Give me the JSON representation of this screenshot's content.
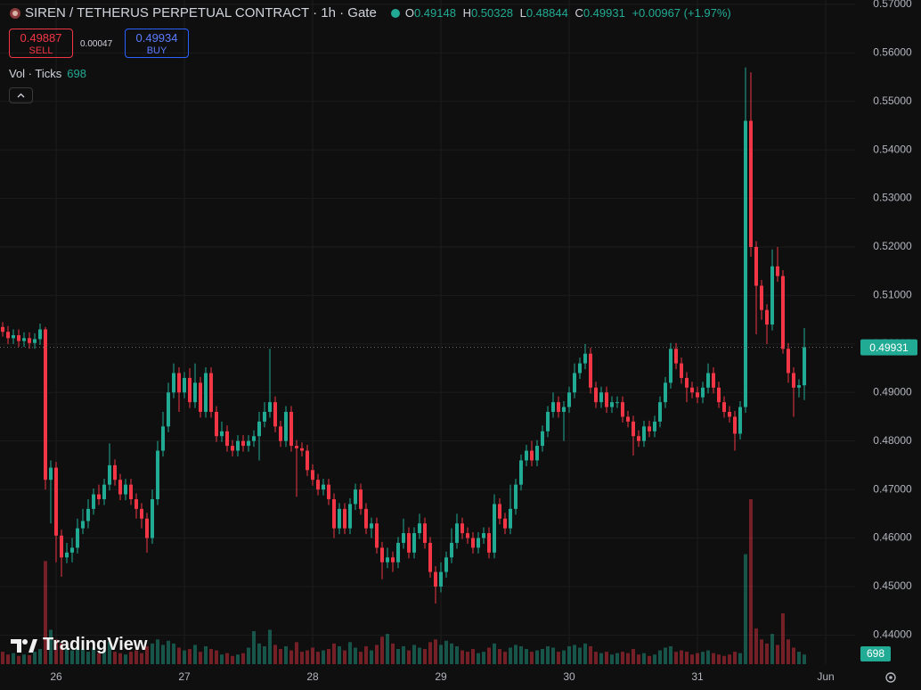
{
  "chart_data": {
    "type": "candlestick",
    "title": "SIREN / TETHERUS PERPETUAL CONTRACT · 1h · Gate",
    "ohlc_labels": [
      "O",
      "H",
      "L",
      "C"
    ],
    "change_label": "+0.00967 (+1.97%)",
    "sell": {
      "price": 0.49887,
      "label": "SELL"
    },
    "spread": 0.00047,
    "buy": {
      "price": 0.49934,
      "label": "BUY"
    },
    "volume_title": "Vol · Ticks",
    "brand": "TradingView",
    "up_color": "#22ab94",
    "down_color": "#f23645",
    "grid": true,
    "xlim": [
      -0.5,
      159.5
    ],
    "xticks": [
      {
        "value": 10,
        "label": "26"
      },
      {
        "value": 34,
        "label": "27"
      },
      {
        "value": 58,
        "label": "28"
      },
      {
        "value": 82,
        "label": "29"
      },
      {
        "value": 106,
        "label": "30"
      },
      {
        "value": 130,
        "label": "31"
      },
      {
        "value": 154,
        "label": "Jun"
      }
    ],
    "ylim": [
      0.434,
      0.5709
    ],
    "yticks": [
      {
        "value": 0.44,
        "label": "0.44000"
      },
      {
        "value": 0.45,
        "label": "0.45000"
      },
      {
        "value": 0.46,
        "label": "0.46000"
      },
      {
        "value": 0.47,
        "label": "0.47000"
      },
      {
        "value": 0.48,
        "label": "0.48000"
      },
      {
        "value": 0.49,
        "label": "0.49000"
      },
      {
        "value": 0.5,
        "label": "0.50000"
      },
      {
        "value": 0.51,
        "label": "0.51000"
      },
      {
        "value": 0.52,
        "label": "0.52000"
      },
      {
        "value": 0.53,
        "label": "0.53000"
      },
      {
        "value": 0.54,
        "label": "0.54000"
      },
      {
        "value": 0.55,
        "label": "0.55000"
      },
      {
        "value": 0.56,
        "label": "0.56000"
      },
      {
        "value": 0.57,
        "label": "0.57000"
      }
    ],
    "open": [
      0.5035,
      0.5025,
      0.5012,
      0.5018,
      0.5006,
      0.5012,
      0.5002,
      0.501,
      0.503,
      0.472,
      0.4745,
      0.4605,
      0.456,
      0.457,
      0.458,
      0.462,
      0.4635,
      0.466,
      0.469,
      0.468,
      0.471,
      0.475,
      0.472,
      0.469,
      0.471,
      0.468,
      0.466,
      0.464,
      0.46,
      0.468,
      0.478,
      0.483,
      0.49,
      0.494,
      0.49,
      0.493,
      0.488,
      0.492,
      0.486,
      0.494,
      0.486,
      0.481,
      0.482,
      0.479,
      0.478,
      0.48,
      0.479,
      0.48,
      0.481,
      0.484,
      0.486,
      0.488,
      0.483,
      0.48,
      0.486,
      0.479,
      0.4785,
      0.478,
      0.474,
      0.472,
      0.47,
      0.471,
      0.468,
      0.462,
      0.466,
      0.462,
      0.467,
      0.47,
      0.466,
      0.462,
      0.463,
      0.458,
      0.455,
      0.456,
      0.455,
      0.459,
      0.461,
      0.457,
      0.461,
      0.463,
      0.459,
      0.453,
      0.45,
      0.453,
      0.456,
      0.459,
      0.463,
      0.461,
      0.46,
      0.458,
      0.46,
      0.461,
      0.457,
      0.467,
      0.464,
      0.462,
      0.466,
      0.471,
      0.476,
      0.478,
      0.476,
      0.479,
      0.482,
      0.486,
      0.488,
      0.486,
      0.487,
      0.49,
      0.494,
      0.496,
      0.498,
      0.491,
      0.488,
      0.49,
      0.487,
      0.488,
      0.488,
      0.485,
      0.484,
      0.481,
      0.48,
      0.483,
      0.482,
      0.484,
      0.488,
      0.492,
      0.499,
      0.496,
      0.493,
      0.491,
      0.49,
      0.489,
      0.491,
      0.494,
      0.491,
      0.488,
      0.486,
      0.485,
      0.4815,
      0.487,
      0.546,
      0.52,
      0.512,
      0.507,
      0.504,
      0.516,
      0.514,
      0.499,
      0.494,
      0.491,
      0.49148
    ],
    "high": [
      0.5045,
      0.5037,
      0.503,
      0.503,
      0.5024,
      0.5024,
      0.5022,
      0.5042,
      0.5035,
      0.476,
      0.4757,
      0.4617,
      0.459,
      0.46,
      0.464,
      0.466,
      0.468,
      0.4702,
      0.471,
      0.4722,
      0.4795,
      0.4762,
      0.4732,
      0.4722,
      0.4722,
      0.4692,
      0.4672,
      0.4652,
      0.47,
      0.48,
      0.486,
      0.492,
      0.496,
      0.4952,
      0.4942,
      0.495,
      0.496,
      0.4932,
      0.4952,
      0.4952,
      0.4872,
      0.484,
      0.4832,
      0.4802,
      0.4812,
      0.4812,
      0.4812,
      0.4822,
      0.486,
      0.488,
      0.499,
      0.4892,
      0.4842,
      0.4872,
      0.4872,
      0.4802,
      0.4797,
      0.4792,
      0.4752,
      0.4732,
      0.4722,
      0.4722,
      0.4692,
      0.4672,
      0.4672,
      0.4682,
      0.4712,
      0.4712,
      0.4672,
      0.4642,
      0.4642,
      0.4592,
      0.458,
      0.4572,
      0.4602,
      0.464,
      0.4622,
      0.4622,
      0.465,
      0.4642,
      0.4602,
      0.4542,
      0.455,
      0.4572,
      0.462,
      0.465,
      0.4642,
      0.4622,
      0.4612,
      0.4612,
      0.4622,
      0.4622,
      0.469,
      0.4682,
      0.4652,
      0.471,
      0.4722,
      0.4772,
      0.4792,
      0.48,
      0.4802,
      0.4832,
      0.4872,
      0.49,
      0.4892,
      0.4882,
      0.4912,
      0.496,
      0.4972,
      0.5,
      0.4992,
      0.4922,
      0.4912,
      0.4912,
      0.4892,
      0.4892,
      0.4892,
      0.4862,
      0.4852,
      0.4822,
      0.4842,
      0.4842,
      0.4852,
      0.4892,
      0.4932,
      0.5002,
      0.5002,
      0.4972,
      0.4942,
      0.4922,
      0.4912,
      0.4922,
      0.496,
      0.4952,
      0.4922,
      0.4892,
      0.4872,
      0.4862,
      0.4882,
      0.557,
      0.556,
      0.5212,
      0.5132,
      0.5082,
      0.5195,
      0.52,
      0.5152,
      0.5002,
      0.4952,
      0.4927,
      0.50328
    ],
    "low": [
      0.5015,
      0.5,
      0.5,
      0.4994,
      0.4994,
      0.499,
      0.499,
      0.4998,
      0.47,
      0.463,
      0.455,
      0.452,
      0.4548,
      0.455,
      0.4568,
      0.4608,
      0.462,
      0.4648,
      0.4668,
      0.4668,
      0.4698,
      0.4708,
      0.4678,
      0.4678,
      0.4668,
      0.464,
      0.462,
      0.457,
      0.4588,
      0.4668,
      0.4768,
      0.4818,
      0.4888,
      0.486,
      0.4888,
      0.4868,
      0.4868,
      0.4848,
      0.4848,
      0.4848,
      0.4798,
      0.4798,
      0.4778,
      0.4768,
      0.4768,
      0.4778,
      0.4778,
      0.4788,
      0.476,
      0.4828,
      0.4848,
      0.4818,
      0.4788,
      0.4788,
      0.4778,
      0.4685,
      0.4768,
      0.4728,
      0.4708,
      0.4688,
      0.4688,
      0.4668,
      0.46,
      0.4608,
      0.4608,
      0.4608,
      0.4658,
      0.4648,
      0.4608,
      0.46,
      0.4568,
      0.4515,
      0.4538,
      0.453,
      0.4538,
      0.4578,
      0.4558,
      0.4558,
      0.4598,
      0.4578,
      0.4518,
      0.4465,
      0.4488,
      0.4518,
      0.4548,
      0.4578,
      0.4598,
      0.4588,
      0.4568,
      0.4568,
      0.4588,
      0.4558,
      0.4558,
      0.4628,
      0.4608,
      0.4608,
      0.4648,
      0.4698,
      0.4748,
      0.4748,
      0.4748,
      0.4778,
      0.4808,
      0.4848,
      0.4848,
      0.48,
      0.4858,
      0.4888,
      0.4928,
      0.4948,
      0.4898,
      0.4868,
      0.4868,
      0.4858,
      0.4858,
      0.4868,
      0.4838,
      0.4828,
      0.477,
      0.4788,
      0.4788,
      0.4808,
      0.4808,
      0.4828,
      0.4868,
      0.4908,
      0.4948,
      0.4918,
      0.488,
      0.4888,
      0.4878,
      0.4878,
      0.4898,
      0.4898,
      0.4868,
      0.4848,
      0.4838,
      0.478,
      0.4803,
      0.4858,
      0.518,
      0.502,
      0.505,
      0.5,
      0.5028,
      0.5128,
      0.498,
      0.492,
      0.485,
      0.489,
      0.48844
    ],
    "close": [
      0.5025,
      0.5012,
      0.5018,
      0.5006,
      0.5012,
      0.5002,
      0.501,
      0.503,
      0.472,
      0.4745,
      0.4605,
      0.456,
      0.457,
      0.458,
      0.462,
      0.4635,
      0.466,
      0.469,
      0.468,
      0.471,
      0.475,
      0.472,
      0.469,
      0.471,
      0.468,
      0.466,
      0.464,
      0.46,
      0.468,
      0.478,
      0.483,
      0.49,
      0.494,
      0.49,
      0.493,
      0.488,
      0.492,
      0.486,
      0.494,
      0.486,
      0.481,
      0.482,
      0.479,
      0.478,
      0.48,
      0.479,
      0.48,
      0.481,
      0.484,
      0.486,
      0.488,
      0.483,
      0.48,
      0.486,
      0.479,
      0.4785,
      0.478,
      0.474,
      0.472,
      0.47,
      0.471,
      0.468,
      0.462,
      0.466,
      0.462,
      0.467,
      0.47,
      0.466,
      0.462,
      0.463,
      0.458,
      0.455,
      0.456,
      0.455,
      0.459,
      0.461,
      0.457,
      0.461,
      0.463,
      0.459,
      0.453,
      0.45,
      0.453,
      0.456,
      0.459,
      0.463,
      0.461,
      0.46,
      0.458,
      0.46,
      0.461,
      0.457,
      0.467,
      0.464,
      0.462,
      0.466,
      0.471,
      0.476,
      0.478,
      0.476,
      0.479,
      0.482,
      0.486,
      0.488,
      0.486,
      0.487,
      0.49,
      0.494,
      0.496,
      0.498,
      0.491,
      0.488,
      0.49,
      0.487,
      0.488,
      0.488,
      0.485,
      0.484,
      0.481,
      0.48,
      0.483,
      0.482,
      0.484,
      0.488,
      0.492,
      0.499,
      0.496,
      0.493,
      0.491,
      0.49,
      0.489,
      0.491,
      0.494,
      0.491,
      0.488,
      0.486,
      0.485,
      0.4815,
      0.487,
      0.546,
      0.52,
      0.512,
      0.507,
      0.504,
      0.516,
      0.514,
      0.499,
      0.494,
      0.491,
      0.4915,
      0.49931
    ],
    "volume": [
      900,
      700,
      800,
      600,
      700,
      650,
      900,
      1100,
      7500,
      2500,
      1800,
      1500,
      1200,
      1000,
      1300,
      1100,
      900,
      1200,
      800,
      1000,
      1600,
      900,
      800,
      700,
      900,
      1000,
      800,
      1300,
      1500,
      1800,
      1400,
      1700,
      1500,
      1200,
      1000,
      1100,
      1400,
      900,
      1300,
      1100,
      1000,
      700,
      800,
      600,
      700,
      800,
      1200,
      2400,
      1500,
      1300,
      2500,
      1400,
      1100,
      1300,
      1000,
      1600,
      900,
      1000,
      1200,
      900,
      1000,
      1100,
      1500,
      1300,
      1000,
      1600,
      1200,
      900,
      1300,
      1000,
      1400,
      2000,
      2200,
      1500,
      1100,
      1300,
      1000,
      1400,
      1200,
      1100,
      1600,
      1800,
      1400,
      1700,
      1500,
      1300,
      1000,
      900,
      1100,
      800,
      900,
      1200,
      1500,
      1100,
      900,
      1200,
      1400,
      1300,
      1100,
      900,
      1000,
      1100,
      1300,
      1200,
      900,
      1000,
      1300,
      1400,
      1200,
      1500,
      1300,
      900,
      800,
      900,
      700,
      800,
      900,
      800,
      1100,
      700,
      800,
      600,
      700,
      1000,
      1200,
      1300,
      900,
      1000,
      900,
      700,
      800,
      900,
      1000,
      800,
      700,
      600,
      700,
      900,
      800,
      8000,
      12000,
      2600,
      1800,
      1500,
      2200,
      1400,
      3700,
      1800,
      1200,
      900,
      698
    ]
  }
}
